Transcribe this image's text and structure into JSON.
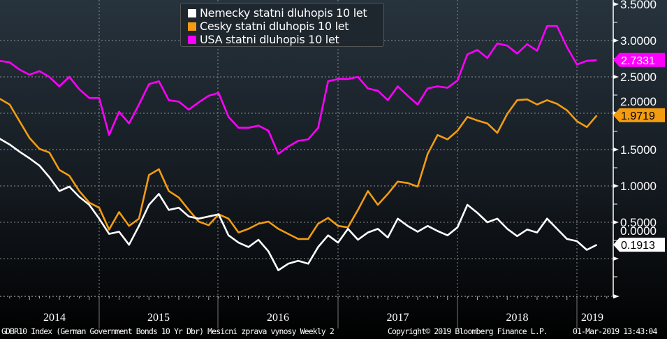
{
  "chart_data": {
    "type": "line",
    "title": "",
    "xlabel": "",
    "ylabel": "",
    "ylim": [
      -0.52,
      3.55
    ],
    "yticks": [
      "3.5000",
      "3.0000",
      "2.5000",
      "2.0000",
      "1.5000",
      "1.0000",
      "0.5000",
      "0.0000"
    ],
    "ytick_values": [
      3.5,
      3.0,
      2.5,
      2.0,
      1.5,
      1.0,
      0.5,
      0.0
    ],
    "xtick_labels": [
      "2014",
      "2015",
      "2016",
      "2017",
      "2018",
      "2019"
    ],
    "grid": true,
    "legend_position": "top-center",
    "y_axis_side": "right",
    "x": [
      "2014-03",
      "2014-04",
      "2014-05",
      "2014-06",
      "2014-07",
      "2014-08",
      "2014-09",
      "2014-10",
      "2014-11",
      "2014-12",
      "2015-01",
      "2015-02",
      "2015-03",
      "2015-04",
      "2015-05",
      "2015-06",
      "2015-07",
      "2015-08",
      "2015-09",
      "2015-10",
      "2015-11",
      "2015-12",
      "2016-01",
      "2016-02",
      "2016-03",
      "2016-04",
      "2016-05",
      "2016-06",
      "2016-07",
      "2016-08",
      "2016-09",
      "2016-10",
      "2016-11",
      "2016-12",
      "2017-01",
      "2017-02",
      "2017-03",
      "2017-04",
      "2017-05",
      "2017-06",
      "2017-07",
      "2017-08",
      "2017-09",
      "2017-10",
      "2017-11",
      "2017-12",
      "2018-01",
      "2018-02",
      "2018-03",
      "2018-04",
      "2018-05",
      "2018-06",
      "2018-07",
      "2018-08",
      "2018-09",
      "2018-10",
      "2018-11",
      "2018-12",
      "2019-01",
      "2019-02",
      "2019-03"
    ],
    "series": [
      {
        "name": "Nemecky statni dluhopis 10 let",
        "color": "#ffffff",
        "last_value": "0.1913",
        "values": [
          1.65,
          1.57,
          1.47,
          1.38,
          1.28,
          1.12,
          0.93,
          0.99,
          0.85,
          0.74,
          0.55,
          0.34,
          0.37,
          0.19,
          0.45,
          0.74,
          0.89,
          0.67,
          0.7,
          0.58,
          0.55,
          0.58,
          0.61,
          0.32,
          0.22,
          0.16,
          0.26,
          0.1,
          -0.16,
          -0.07,
          -0.03,
          -0.07,
          0.16,
          0.32,
          0.22,
          0.41,
          0.26,
          0.36,
          0.41,
          0.29,
          0.55,
          0.45,
          0.37,
          0.45,
          0.38,
          0.32,
          0.43,
          0.74,
          0.63,
          0.5,
          0.55,
          0.41,
          0.31,
          0.4,
          0.36,
          0.55,
          0.41,
          0.27,
          0.24,
          0.12,
          0.19
        ]
      },
      {
        "name": "Cesky statni dluhopis 10 let",
        "color": "#f39c12",
        "last_value": "1.9719",
        "values": [
          2.2,
          2.12,
          1.89,
          1.66,
          1.51,
          1.46,
          1.22,
          1.14,
          0.93,
          0.77,
          0.7,
          0.4,
          0.64,
          0.45,
          0.55,
          1.15,
          1.23,
          0.93,
          0.84,
          0.67,
          0.51,
          0.46,
          0.61,
          0.55,
          0.36,
          0.41,
          0.48,
          0.51,
          0.41,
          0.34,
          0.27,
          0.27,
          0.48,
          0.56,
          0.45,
          0.43,
          0.67,
          0.93,
          0.74,
          0.89,
          1.06,
          1.04,
          0.99,
          1.44,
          1.7,
          1.64,
          1.76,
          1.95,
          1.9,
          1.86,
          1.73,
          1.99,
          2.18,
          2.19,
          2.12,
          2.18,
          2.13,
          2.04,
          1.89,
          1.81,
          1.97
        ]
      },
      {
        "name": "USA statni dluhopis 10 let",
        "color": "#ff00ff",
        "last_value": "2.7331",
        "values": [
          2.72,
          2.7,
          2.6,
          2.53,
          2.58,
          2.5,
          2.37,
          2.5,
          2.33,
          2.21,
          2.21,
          1.7,
          2.02,
          1.86,
          2.12,
          2.4,
          2.44,
          2.18,
          2.16,
          2.05,
          2.15,
          2.24,
          2.28,
          1.95,
          1.8,
          1.8,
          1.83,
          1.76,
          1.44,
          1.54,
          1.62,
          1.64,
          1.8,
          2.44,
          2.47,
          2.47,
          2.5,
          2.34,
          2.31,
          2.18,
          2.37,
          2.24,
          2.12,
          2.34,
          2.37,
          2.35,
          2.45,
          2.81,
          2.87,
          2.76,
          2.96,
          2.93,
          2.82,
          2.95,
          2.86,
          3.2,
          3.2,
          2.91,
          2.67,
          2.72,
          2.73
        ]
      }
    ]
  },
  "footer": {
    "description": "GDBR10 Index (German Government Bonds 10 Yr Dbr) Mesicni zprava vynosy  Weekly 2",
    "copyright": "Copyright© 2019 Bloomberg Finance L.P.",
    "timestamp": "01-Mar-2019 13:43:04"
  }
}
